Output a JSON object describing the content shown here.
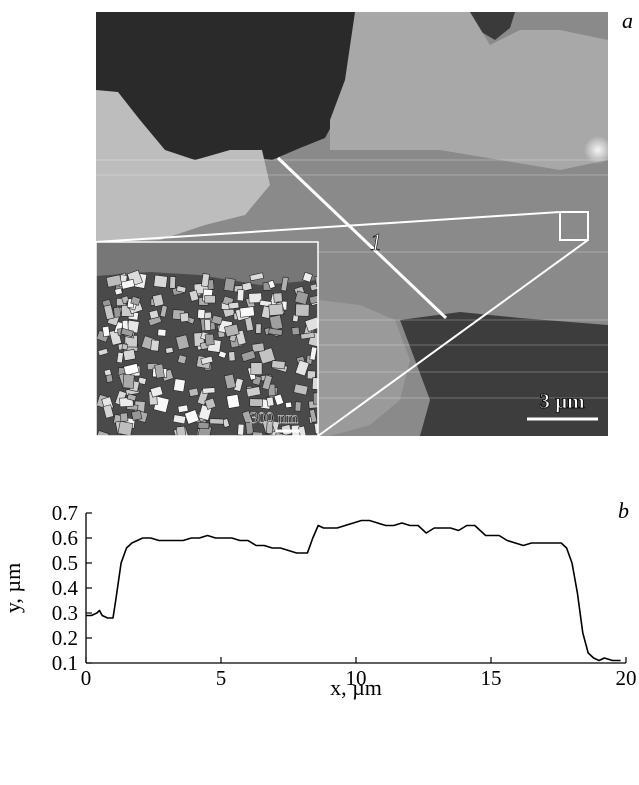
{
  "panel_a": {
    "letter": "a",
    "line_label": "1",
    "main_scale_bar": "3 µm",
    "inset_scale_bar": "300 nm"
  },
  "chart_data": {
    "type": "line",
    "panel_letter": "b",
    "title": "",
    "xlabel": "x, µm",
    "ylabel": "y, µm",
    "xlim": [
      0,
      20
    ],
    "ylim": [
      0.1,
      0.7
    ],
    "xticks": [
      0,
      5,
      10,
      15,
      20
    ],
    "xtick_labels": [
      "0",
      "5",
      "10",
      "15",
      "20"
    ],
    "yticks": [
      0.1,
      0.2,
      0.3,
      0.4,
      0.5,
      0.6,
      0.7
    ],
    "ytick_labels": [
      "0.1",
      "0.2",
      "0.3",
      "0.4",
      "0.5",
      "0.6",
      "0.7"
    ],
    "grid": false,
    "legend": "none",
    "series": [
      {
        "x": [
          0.0,
          0.2,
          0.4,
          0.5,
          0.6,
          0.8,
          1.0,
          1.1,
          1.3,
          1.5,
          1.7,
          1.9,
          2.1,
          2.4,
          2.7,
          3.0,
          3.3,
          3.6,
          3.9,
          4.2,
          4.5,
          4.8,
          5.1,
          5.4,
          5.7,
          6.0,
          6.3,
          6.6,
          6.9,
          7.2,
          7.5,
          7.8,
          8.0,
          8.2,
          8.4,
          8.6,
          8.8,
          9.0,
          9.3,
          9.6,
          9.9,
          10.2,
          10.5,
          10.8,
          11.1,
          11.4,
          11.7,
          12.0,
          12.3,
          12.6,
          12.9,
          13.2,
          13.5,
          13.8,
          14.1,
          14.4,
          14.6,
          14.8,
          15.0,
          15.3,
          15.6,
          15.9,
          16.2,
          16.5,
          16.8,
          17.1,
          17.4,
          17.6,
          17.8,
          18.0,
          18.2,
          18.4,
          18.6,
          18.8,
          19.0,
          19.2,
          19.5,
          19.8
        ],
        "y": [
          0.29,
          0.29,
          0.3,
          0.31,
          0.29,
          0.28,
          0.28,
          0.35,
          0.5,
          0.56,
          0.58,
          0.59,
          0.6,
          0.6,
          0.59,
          0.59,
          0.59,
          0.59,
          0.6,
          0.6,
          0.61,
          0.6,
          0.6,
          0.6,
          0.59,
          0.59,
          0.57,
          0.57,
          0.56,
          0.56,
          0.55,
          0.54,
          0.54,
          0.54,
          0.6,
          0.65,
          0.64,
          0.64,
          0.64,
          0.65,
          0.66,
          0.67,
          0.67,
          0.66,
          0.65,
          0.65,
          0.66,
          0.65,
          0.65,
          0.62,
          0.64,
          0.64,
          0.64,
          0.63,
          0.65,
          0.65,
          0.63,
          0.61,
          0.61,
          0.61,
          0.59,
          0.58,
          0.57,
          0.58,
          0.58,
          0.58,
          0.58,
          0.58,
          0.56,
          0.5,
          0.38,
          0.22,
          0.14,
          0.12,
          0.11,
          0.12,
          0.11,
          0.11
        ]
      }
    ]
  }
}
